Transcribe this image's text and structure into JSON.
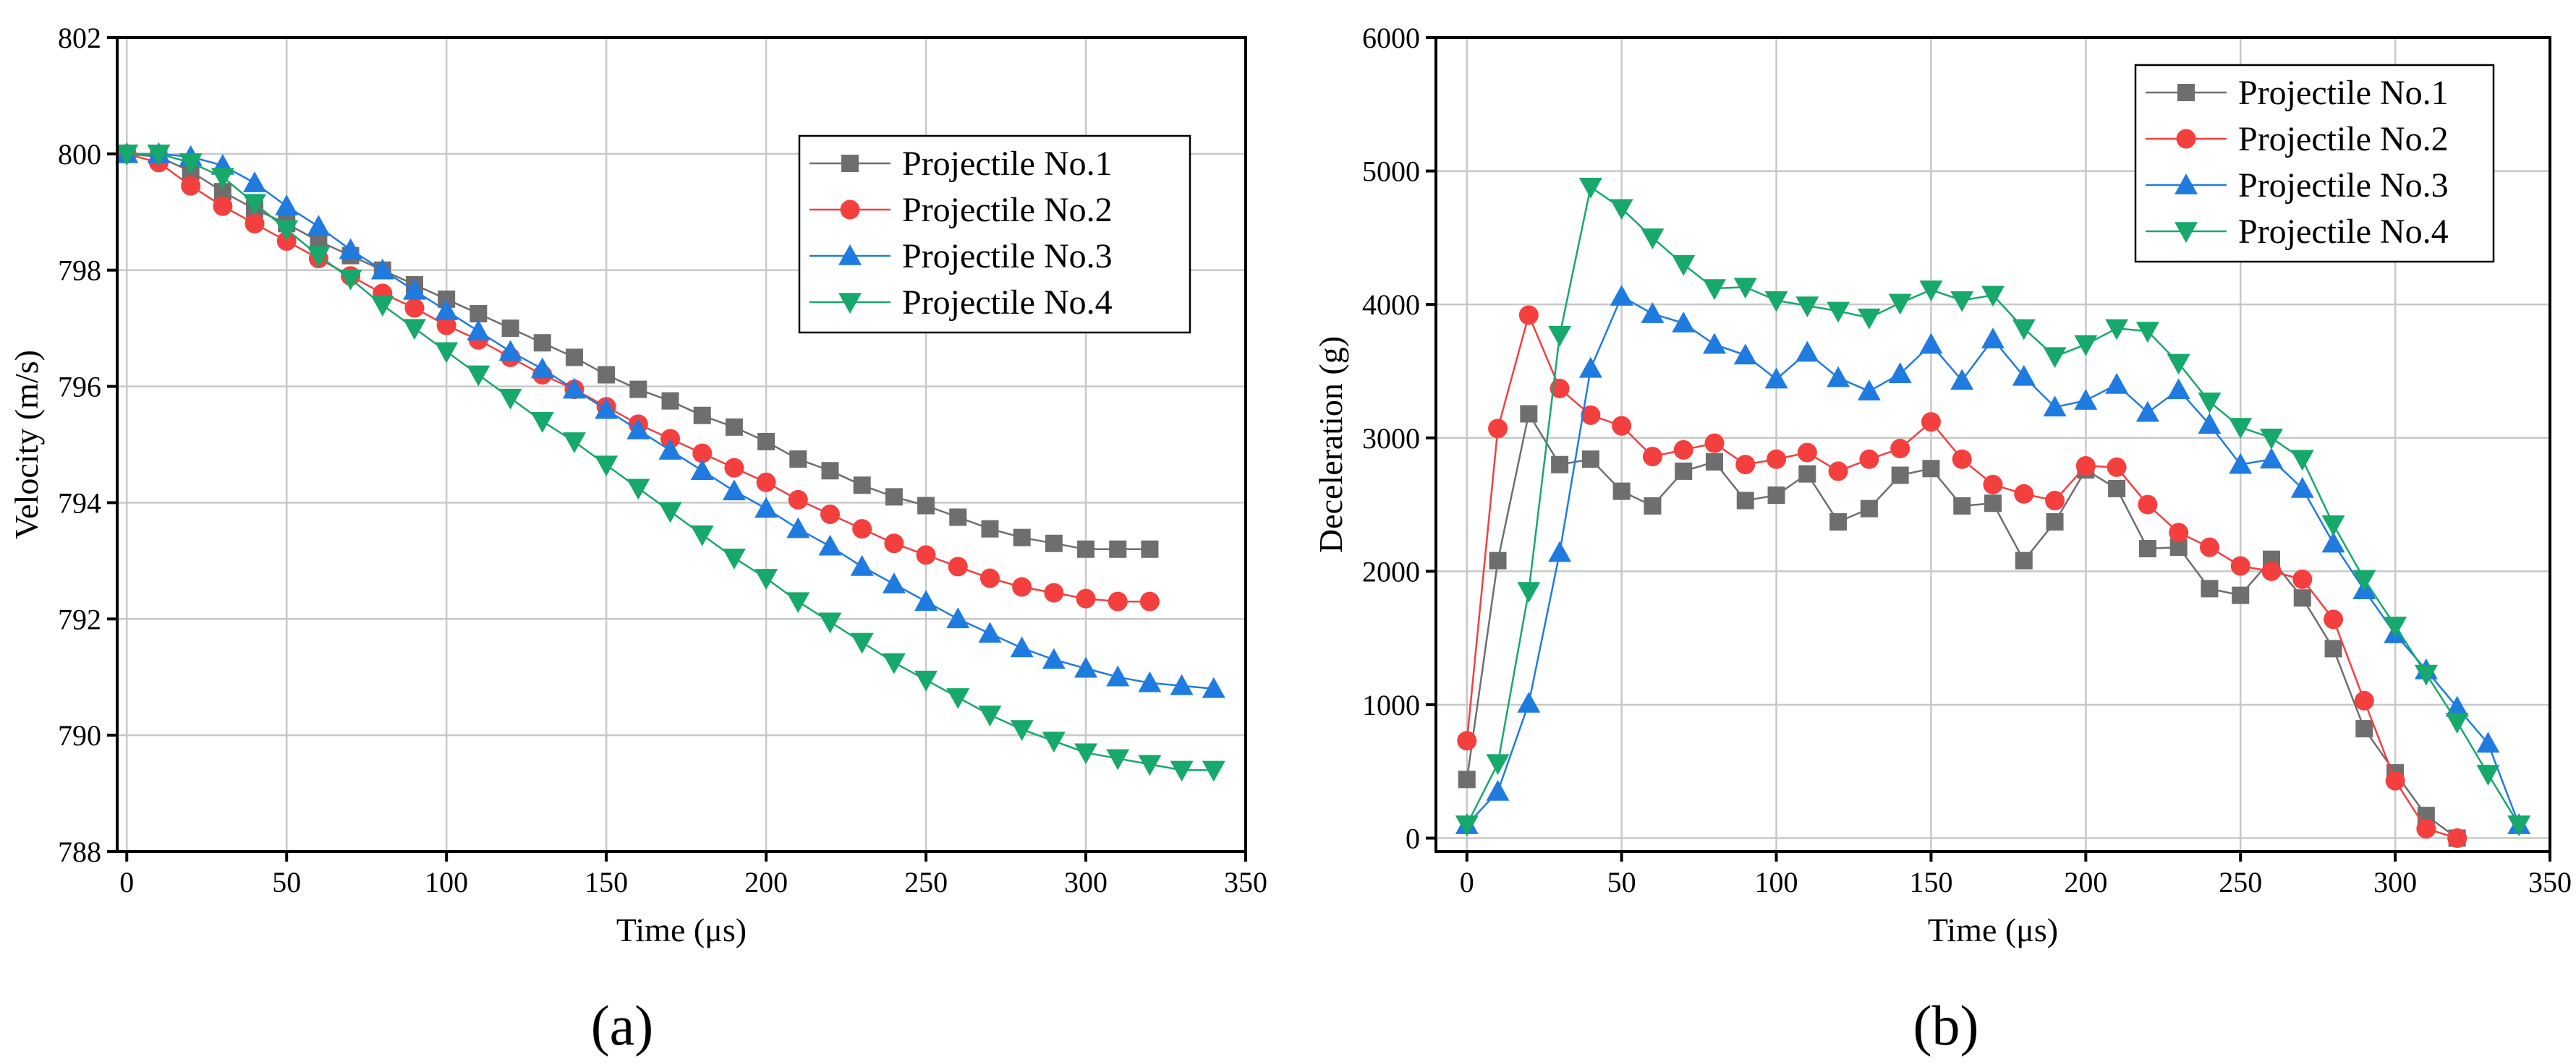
{
  "colors": {
    "no1": "#6e6e6e",
    "no2": "#f43f3f",
    "no3": "#1f7be0",
    "no4": "#17a86b"
  },
  "chart_data": [
    {
      "type": "line",
      "panel": "(a)",
      "xlabel": "Time (μs)",
      "ylabel": "Velocity (m/s)",
      "xlim": [
        -3,
        350
      ],
      "ylim": [
        788,
        802
      ],
      "xticks": [
        0,
        50,
        100,
        150,
        200,
        250,
        300,
        350
      ],
      "yticks": [
        788,
        790,
        792,
        794,
        796,
        798,
        800,
        802
      ],
      "grid": true,
      "legend_position": "top-right",
      "series": [
        {
          "name": "Projectile No.1",
          "marker": "square",
          "color": "#6e6e6e",
          "x": [
            0,
            10,
            20,
            30,
            40,
            50,
            60,
            70,
            80,
            90,
            100,
            110,
            120,
            130,
            140,
            150,
            160,
            170,
            180,
            190,
            200,
            210,
            220,
            230,
            240,
            250,
            260,
            270,
            280,
            290,
            300,
            310,
            320
          ],
          "values": [
            800.0,
            799.95,
            799.7,
            799.35,
            799.05,
            798.8,
            798.5,
            798.25,
            798.0,
            797.75,
            797.5,
            797.25,
            797.0,
            796.75,
            796.5,
            796.2,
            795.95,
            795.75,
            795.5,
            795.3,
            795.05,
            794.75,
            794.55,
            794.3,
            794.1,
            793.95,
            793.75,
            793.55,
            793.4,
            793.3,
            793.2,
            793.2,
            793.2
          ]
        },
        {
          "name": "Projectile No.2",
          "marker": "circle",
          "color": "#f43f3f",
          "x": [
            0,
            10,
            20,
            30,
            40,
            50,
            60,
            70,
            80,
            90,
            100,
            110,
            120,
            130,
            140,
            150,
            160,
            170,
            180,
            190,
            200,
            210,
            220,
            230,
            240,
            250,
            260,
            270,
            280,
            290,
            300,
            310,
            320
          ],
          "values": [
            800.0,
            799.85,
            799.45,
            799.1,
            798.8,
            798.5,
            798.2,
            797.9,
            797.6,
            797.35,
            797.05,
            796.8,
            796.5,
            796.2,
            795.95,
            795.65,
            795.35,
            795.1,
            794.85,
            794.6,
            794.35,
            794.05,
            793.8,
            793.55,
            793.3,
            793.1,
            792.9,
            792.7,
            792.55,
            792.45,
            792.35,
            792.3,
            792.3
          ]
        },
        {
          "name": "Projectile No.3",
          "marker": "triangle-up",
          "color": "#1f7be0",
          "x": [
            0,
            10,
            20,
            30,
            40,
            50,
            60,
            70,
            80,
            90,
            100,
            110,
            120,
            130,
            140,
            150,
            160,
            170,
            180,
            190,
            200,
            210,
            220,
            230,
            240,
            250,
            260,
            270,
            280,
            290,
            300,
            310,
            320,
            330,
            340
          ],
          "values": [
            800.0,
            800.0,
            799.95,
            799.8,
            799.5,
            799.1,
            798.75,
            798.35,
            798.0,
            797.65,
            797.3,
            796.95,
            796.6,
            796.3,
            795.95,
            795.6,
            795.25,
            794.9,
            794.55,
            794.2,
            793.9,
            793.55,
            793.25,
            792.9,
            792.6,
            792.3,
            792.0,
            791.75,
            791.5,
            791.3,
            791.15,
            791.0,
            790.9,
            790.85,
            790.8
          ]
        },
        {
          "name": "Projectile No.4",
          "marker": "triangle-down",
          "color": "#17a86b",
          "x": [
            0,
            10,
            20,
            30,
            40,
            50,
            60,
            70,
            80,
            90,
            100,
            110,
            120,
            130,
            140,
            150,
            160,
            170,
            180,
            190,
            200,
            210,
            220,
            230,
            240,
            250,
            260,
            270,
            280,
            290,
            300,
            310,
            320,
            330,
            340
          ],
          "values": [
            800.0,
            800.0,
            799.85,
            799.6,
            799.15,
            798.7,
            798.25,
            797.85,
            797.4,
            797.0,
            796.6,
            796.2,
            795.8,
            795.4,
            795.05,
            794.65,
            794.25,
            793.85,
            793.45,
            793.05,
            792.7,
            792.3,
            791.95,
            791.6,
            791.25,
            790.95,
            790.65,
            790.35,
            790.1,
            789.9,
            789.7,
            789.6,
            789.5,
            789.4,
            789.4
          ]
        }
      ]
    },
    {
      "type": "line",
      "panel": "(b)",
      "xlabel": "Time (μs)",
      "ylabel": "Deceleration (g)",
      "xlim": [
        -10,
        350
      ],
      "ylim": [
        -100,
        6000
      ],
      "xticks": [
        0,
        50,
        100,
        150,
        200,
        250,
        300,
        350
      ],
      "yticks": [
        0,
        1000,
        2000,
        3000,
        4000,
        5000,
        6000
      ],
      "grid": true,
      "legend_position": "top-right",
      "series": [
        {
          "name": "Projectile No.1",
          "marker": "square",
          "color": "#6e6e6e",
          "x": [
            0,
            10,
            20,
            30,
            40,
            50,
            60,
            70,
            80,
            90,
            100,
            110,
            120,
            130,
            140,
            150,
            160,
            170,
            180,
            190,
            200,
            210,
            220,
            230,
            240,
            250,
            260,
            270,
            280,
            290,
            300,
            310,
            320
          ],
          "values": [
            440,
            2080,
            3180,
            2800,
            2840,
            2600,
            2490,
            2750,
            2820,
            2530,
            2570,
            2730,
            2370,
            2470,
            2720,
            2770,
            2490,
            2510,
            2080,
            2370,
            2760,
            2620,
            2170,
            2180,
            1870,
            1820,
            2090,
            1800,
            1420,
            820,
            490,
            170,
            0
          ]
        },
        {
          "name": "Projectile No.2",
          "marker": "circle",
          "color": "#f43f3f",
          "x": [
            0,
            10,
            20,
            30,
            40,
            50,
            60,
            70,
            80,
            90,
            100,
            110,
            120,
            130,
            140,
            150,
            160,
            170,
            180,
            190,
            200,
            210,
            220,
            230,
            240,
            250,
            260,
            270,
            280,
            290,
            300,
            310,
            320
          ],
          "values": [
            730,
            3070,
            3920,
            3370,
            3170,
            3090,
            2860,
            2910,
            2960,
            2800,
            2840,
            2890,
            2750,
            2840,
            2920,
            3120,
            2840,
            2650,
            2580,
            2530,
            2790,
            2780,
            2500,
            2290,
            2180,
            2040,
            2000,
            1940,
            1640,
            1030,
            430,
            70,
            0
          ]
        },
        {
          "name": "Projectile No.3",
          "marker": "triangle-up",
          "color": "#1f7be0",
          "x": [
            0,
            10,
            20,
            30,
            40,
            50,
            60,
            70,
            80,
            90,
            100,
            110,
            120,
            130,
            140,
            150,
            160,
            170,
            180,
            190,
            200,
            210,
            220,
            230,
            240,
            250,
            260,
            270,
            280,
            290,
            300,
            310,
            320,
            330,
            340
          ],
          "values": [
            100,
            350,
            1010,
            2140,
            3520,
            4060,
            3930,
            3860,
            3700,
            3620,
            3440,
            3640,
            3450,
            3350,
            3480,
            3700,
            3430,
            3740,
            3460,
            3230,
            3280,
            3400,
            3190,
            3360,
            3100,
            2800,
            2840,
            2620,
            2210,
            1860,
            1530,
            1260,
            980,
            710,
            100
          ]
        },
        {
          "name": "Projectile No.4",
          "marker": "triangle-down",
          "color": "#17a86b",
          "x": [
            0,
            10,
            20,
            30,
            40,
            50,
            60,
            70,
            80,
            90,
            100,
            110,
            120,
            130,
            140,
            150,
            160,
            170,
            180,
            190,
            200,
            210,
            220,
            230,
            240,
            250,
            260,
            270,
            280,
            290,
            300,
            310,
            320,
            330,
            340
          ],
          "values": [
            100,
            560,
            1850,
            3770,
            4880,
            4720,
            4500,
            4300,
            4120,
            4130,
            4030,
            3990,
            3950,
            3900,
            4010,
            4110,
            4030,
            4070,
            3820,
            3610,
            3700,
            3820,
            3800,
            3560,
            3270,
            3080,
            3000,
            2840,
            2350,
            1940,
            1590,
            1230,
            870,
            480,
            100
          ]
        }
      ]
    }
  ]
}
